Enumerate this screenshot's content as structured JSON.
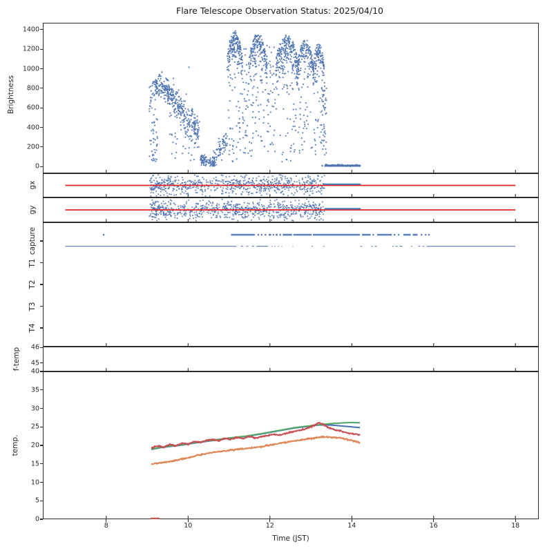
{
  "title": "Flare Telescope Observation Status: 2025/04/10",
  "axes": {
    "xlabel": "Time (JST)",
    "x_ticks": [
      8,
      10,
      12,
      14,
      16,
      18
    ],
    "xlim": [
      6.45,
      18.57
    ]
  },
  "colors": {
    "scatter_blue": "#4c72b0",
    "signal_red": "#e32222",
    "temp_red": "#c44e52",
    "temp_blue": "#4c72b0",
    "temp_green": "#55a868",
    "temp_orange": "#dd8452",
    "frame": "#2b2b2b"
  },
  "chart_data": [
    {
      "id": "brightness",
      "type": "scatter",
      "ylabel": "Brightness",
      "ylim": [
        -70,
        1470
      ],
      "yticks": [
        0,
        200,
        400,
        600,
        800,
        1000,
        1200,
        1400
      ],
      "data_time_range": [
        9.05,
        14.22
      ],
      "clusters": [
        {
          "kind": "trail",
          "t": [
            9.05,
            9.25
          ],
          "y": [
            0,
            880
          ],
          "n": 70
        },
        {
          "kind": "band",
          "t": [
            9.2,
            9.55
          ],
          "y0": 830,
          "y1": 790,
          "spread": 110,
          "n": 110
        },
        {
          "kind": "band",
          "t": [
            9.5,
            10.28
          ],
          "y0": 770,
          "y1": 330,
          "spread": 145,
          "n": 250
        },
        {
          "kind": "trail",
          "t": [
            9.55,
            10.2
          ],
          "y": [
            30,
            480
          ],
          "n": 40
        },
        {
          "kind": "pts",
          "pts": [
            [
              10.02,
              1015
            ],
            [
              9.36,
              965
            ],
            [
              9.3,
              940
            ]
          ]
        },
        {
          "kind": "band",
          "t": [
            10.28,
            10.65
          ],
          "y0": 70,
          "y1": 35,
          "spread": 55,
          "n": 90
        },
        {
          "kind": "band",
          "t": [
            10.62,
            10.96
          ],
          "y0": 60,
          "y1": 280,
          "spread": 110,
          "n": 70
        },
        {
          "kind": "peak",
          "t": [
            10.95,
            11.33
          ],
          "top": 1390,
          "n": 170,
          "trail_n": 60
        },
        {
          "kind": "trail",
          "t": [
            11.3,
            11.52
          ],
          "y": [
            100,
            1260
          ],
          "n": 40
        },
        {
          "kind": "peak",
          "t": [
            11.48,
            11.93
          ],
          "top": 1370,
          "n": 170,
          "trail_n": 55
        },
        {
          "kind": "trail",
          "t": [
            11.92,
            12.16
          ],
          "y": [
            150,
            1280
          ],
          "n": 45
        },
        {
          "kind": "peak",
          "t": [
            12.14,
            12.68
          ],
          "top": 1355,
          "n": 210,
          "trail_n": 60
        },
        {
          "kind": "peak",
          "t": [
            12.66,
            13.07
          ],
          "top": 1305,
          "n": 150,
          "trail_n": 45
        },
        {
          "kind": "peak",
          "t": [
            13.05,
            13.34
          ],
          "top": 1270,
          "n": 110,
          "trail_n": 35
        },
        {
          "kind": "trail",
          "t": [
            13.26,
            13.38
          ],
          "y": [
            0,
            900
          ],
          "n": 45
        },
        {
          "kind": "band",
          "t": [
            13.35,
            14.2
          ],
          "y0": 10,
          "y1": 10,
          "spread": 12,
          "n": 50
        }
      ],
      "zero_segment": [
        13.33,
        14.22
      ]
    },
    {
      "id": "gx",
      "type": "scatter_with_reference",
      "ylabel": "gx",
      "red_line_t": [
        7.0,
        18.0
      ],
      "scatter_t": [
        9.05,
        13.33
      ],
      "scatter_counts": [
        [
          9.05,
          9.6,
          120
        ],
        [
          9.6,
          10.9,
          170
        ],
        [
          10.9,
          13.33,
          420
        ]
      ],
      "dense_line_t": [
        13.33,
        14.22
      ]
    },
    {
      "id": "gy",
      "type": "scatter_with_reference",
      "ylabel": "gy",
      "red_line_t": [
        7.0,
        18.0
      ],
      "scatter_t": [
        9.05,
        13.33
      ],
      "scatter_counts": [
        [
          9.05,
          9.6,
          130
        ],
        [
          9.6,
          10.9,
          180
        ],
        [
          10.9,
          13.33,
          430
        ]
      ],
      "dense_line_t": [
        13.33,
        14.22
      ]
    },
    {
      "id": "capture",
      "type": "event_rows",
      "row_labels": [
        "capture",
        "T1",
        "T2",
        "T3",
        "T4"
      ],
      "on_segments": [
        [
          7.92,
          7.95
        ],
        [
          11.05,
          11.63
        ],
        [
          11.7,
          11.73
        ],
        [
          11.79,
          11.81
        ],
        [
          11.88,
          11.9
        ],
        [
          11.97,
          12.03
        ],
        [
          12.07,
          12.1
        ],
        [
          12.14,
          12.19
        ],
        [
          12.23,
          12.27
        ],
        [
          12.31,
          12.54
        ],
        [
          12.57,
          13.02
        ],
        [
          13.05,
          14.2
        ],
        [
          14.25,
          14.46
        ],
        [
          14.51,
          14.54
        ],
        [
          14.62,
          14.98
        ],
        [
          15.03,
          15.06
        ],
        [
          15.13,
          15.16
        ],
        [
          15.26,
          15.44
        ],
        [
          15.49,
          15.61
        ],
        [
          15.69,
          15.72
        ],
        [
          15.79,
          15.82
        ],
        [
          15.87,
          15.9
        ]
      ],
      "off_segments": [
        [
          7.0,
          11.18
        ],
        [
          11.29,
          11.34
        ],
        [
          11.42,
          11.47
        ],
        [
          11.56,
          11.61
        ],
        [
          11.67,
          11.95
        ],
        [
          12.04,
          12.06
        ],
        [
          12.11,
          12.13
        ],
        [
          12.2,
          12.22
        ],
        [
          12.28,
          12.3
        ],
        [
          12.55,
          12.57
        ],
        [
          13.02,
          13.05
        ],
        [
          13.3,
          13.33
        ],
        [
          14.21,
          14.25
        ],
        [
          14.48,
          14.51
        ],
        [
          14.56,
          14.61
        ],
        [
          14.99,
          15.02
        ],
        [
          15.07,
          15.12
        ],
        [
          15.17,
          15.24
        ],
        [
          15.45,
          15.48
        ],
        [
          15.63,
          15.67
        ],
        [
          15.73,
          15.77
        ],
        [
          15.83,
          18.0
        ]
      ]
    },
    {
      "id": "ftemp",
      "type": "line",
      "ylabel": "f-temp",
      "ylim": [
        44.45,
        46.05
      ],
      "yticks": [
        46,
        45
      ],
      "series": []
    },
    {
      "id": "temp",
      "type": "line",
      "ylabel": "temp.",
      "ylim": [
        0,
        40
      ],
      "yticks": [
        0,
        5,
        10,
        15,
        20,
        25,
        30,
        35,
        40
      ],
      "series": [
        {
          "name": "blue",
          "color_key": "temp_blue",
          "noisy": false,
          "points": [
            [
              9.1,
              18.9
            ],
            [
              9.4,
              19.5
            ],
            [
              9.8,
              20.0
            ],
            [
              10.2,
              20.7
            ],
            [
              10.6,
              21.3
            ],
            [
              11.0,
              21.9
            ],
            [
              11.4,
              22.4
            ],
            [
              11.8,
              23.1
            ],
            [
              12.2,
              23.9
            ],
            [
              12.6,
              24.7
            ],
            [
              12.9,
              25.1
            ],
            [
              13.2,
              25.5
            ],
            [
              13.5,
              25.5
            ],
            [
              13.8,
              25.2
            ],
            [
              14.0,
              25.0
            ],
            [
              14.2,
              24.8
            ]
          ]
        },
        {
          "name": "green",
          "color_key": "temp_green",
          "noisy": false,
          "points": [
            [
              9.1,
              19.0
            ],
            [
              9.4,
              19.6
            ],
            [
              9.8,
              20.1
            ],
            [
              10.2,
              20.8
            ],
            [
              10.6,
              21.4
            ],
            [
              11.0,
              22.0
            ],
            [
              11.4,
              22.5
            ],
            [
              11.8,
              23.2
            ],
            [
              12.2,
              24.0
            ],
            [
              12.6,
              24.8
            ],
            [
              12.9,
              25.2
            ],
            [
              13.2,
              25.6
            ],
            [
              13.5,
              25.9
            ],
            [
              13.8,
              26.1
            ],
            [
              14.0,
              26.2
            ],
            [
              14.2,
              26.1
            ]
          ]
        },
        {
          "name": "orange",
          "color_key": "temp_orange",
          "noisy": true,
          "points": [
            [
              9.1,
              14.9
            ],
            [
              9.3,
              15.2
            ],
            [
              9.6,
              15.7
            ],
            [
              9.9,
              16.4
            ],
            [
              10.2,
              17.2
            ],
            [
              10.5,
              17.9
            ],
            [
              10.8,
              18.4
            ],
            [
              11.1,
              18.8
            ],
            [
              11.4,
              19.1
            ],
            [
              11.7,
              19.5
            ],
            [
              12.0,
              20.1
            ],
            [
              12.3,
              20.7
            ],
            [
              12.6,
              21.2
            ],
            [
              12.9,
              21.7
            ],
            [
              13.1,
              22.0
            ],
            [
              13.3,
              22.3
            ],
            [
              13.5,
              22.2
            ],
            [
              13.7,
              22.0
            ],
            [
              13.9,
              21.6
            ],
            [
              14.05,
              21.2
            ],
            [
              14.2,
              20.7
            ]
          ]
        },
        {
          "name": "red",
          "color_key": "temp_red",
          "noisy": true,
          "points": [
            [
              9.1,
              19.3
            ],
            [
              9.25,
              19.8
            ],
            [
              9.4,
              19.5
            ],
            [
              9.55,
              20.2
            ],
            [
              9.7,
              19.9
            ],
            [
              9.85,
              20.6
            ],
            [
              10.0,
              20.4
            ],
            [
              10.15,
              21.1
            ],
            [
              10.3,
              20.8
            ],
            [
              10.45,
              21.3
            ],
            [
              10.6,
              21.6
            ],
            [
              10.75,
              21.3
            ],
            [
              10.9,
              21.9
            ],
            [
              11.05,
              21.6
            ],
            [
              11.2,
              22.1
            ],
            [
              11.35,
              21.8
            ],
            [
              11.5,
              22.4
            ],
            [
              11.65,
              22.0
            ],
            [
              11.8,
              22.3
            ],
            [
              11.95,
              22.6
            ],
            [
              12.1,
              23.0
            ],
            [
              12.25,
              22.7
            ],
            [
              12.4,
              23.3
            ],
            [
              12.55,
              23.6
            ],
            [
              12.7,
              24.0
            ],
            [
              12.85,
              24.4
            ],
            [
              13.0,
              25.0
            ],
            [
              13.1,
              25.5
            ],
            [
              13.2,
              26.2
            ],
            [
              13.3,
              25.6
            ],
            [
              13.45,
              24.8
            ],
            [
              13.6,
              24.2
            ],
            [
              13.75,
              23.8
            ],
            [
              13.9,
              23.4
            ],
            [
              14.05,
              23.1
            ],
            [
              14.2,
              22.9
            ]
          ]
        }
      ],
      "red_floor_segment": {
        "t": [
          9.08,
          9.3
        ],
        "value": 0.2
      }
    }
  ]
}
